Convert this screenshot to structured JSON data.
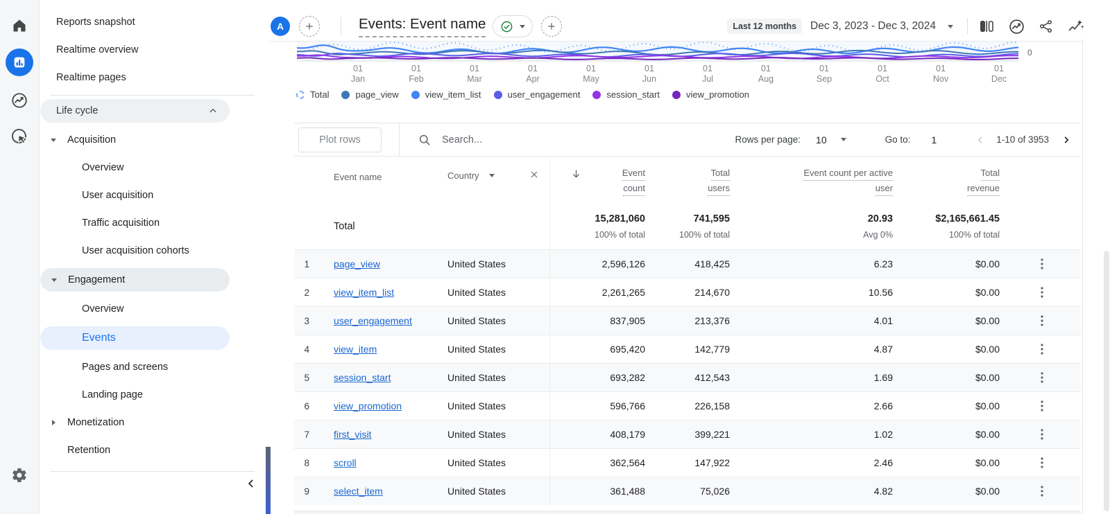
{
  "accent": {
    "primary_blue": "#1a73e8",
    "link_blue": "#1967d2",
    "active_item_bg": "#e8f0fe"
  },
  "icons": {
    "rail": [
      "home-icon",
      "reports-icon",
      "explore-icon",
      "advertising-icon",
      "settings-gear-icon"
    ],
    "header_actions": [
      "edit-comparisons-icon",
      "view-insights-icon",
      "share-report-icon",
      "generated-insights-icon"
    ],
    "misc": [
      "plus-icon",
      "check-circle-icon",
      "search-icon",
      "close-icon",
      "sort-descending-icon",
      "row-menu-kebab-icon"
    ]
  },
  "sidebar": {
    "top_items": [
      "Reports snapshot",
      "Realtime overview",
      "Realtime pages"
    ],
    "section_label": "Life cycle",
    "acquisition": {
      "label": "Acquisition",
      "children": [
        "Overview",
        "User acquisition",
        "Traffic acquisition",
        "User acquisition cohorts"
      ]
    },
    "engagement": {
      "label": "Engagement",
      "children": [
        "Overview",
        "Events",
        "Pages and screens",
        "Landing page"
      ],
      "active_child": "Events"
    },
    "monetization_label": "Monetization",
    "retention_label": "Retention"
  },
  "header": {
    "avatar_initial": "A",
    "title": "Events: Event name",
    "date_preset_badge": "Last 12 months",
    "date_range": "Dec 3, 2023 - Dec 3, 2024"
  },
  "chart_data": {
    "type": "line",
    "title": "",
    "x_ticks": [
      {
        "day": "01",
        "month": "Jan"
      },
      {
        "day": "01",
        "month": "Feb"
      },
      {
        "day": "01",
        "month": "Mar"
      },
      {
        "day": "01",
        "month": "Apr"
      },
      {
        "day": "01",
        "month": "May"
      },
      {
        "day": "01",
        "month": "Jun"
      },
      {
        "day": "01",
        "month": "Jul"
      },
      {
        "day": "01",
        "month": "Aug"
      },
      {
        "day": "01",
        "month": "Sep"
      },
      {
        "day": "01",
        "month": "Oct"
      },
      {
        "day": "01",
        "month": "Nov"
      },
      {
        "day": "01",
        "month": "Dec"
      }
    ],
    "y_tick_label": "0",
    "series": [
      {
        "name": "Total",
        "color": "#4285f4",
        "style": "dotted"
      },
      {
        "name": "page_view",
        "color": "#3f77b5",
        "style": "solid"
      },
      {
        "name": "view_item_list",
        "color": "#4285f4",
        "style": "solid"
      },
      {
        "name": "user_engagement",
        "color": "#5a5de8",
        "style": "solid"
      },
      {
        "name": "session_start",
        "color": "#9334e6",
        "style": "solid"
      },
      {
        "name": "view_promotion",
        "color": "#7627bb",
        "style": "solid"
      }
    ],
    "legend_position": "bottom",
    "visible_note": "Only the bottom band of the time-series near the 0 gridline is visible; the rest of the plot is scrolled out of view above."
  },
  "toolbar": {
    "plot_rows_label": "Plot rows",
    "search_placeholder": "Search...",
    "rows_per_page_label": "Rows per page:",
    "rows_per_page_value": "10",
    "go_to_label": "Go to:",
    "go_to_value": "1",
    "pagination_range": "1-10 of 3953"
  },
  "table": {
    "columns": {
      "event_name": "Event name",
      "secondary_dimension": "Country",
      "event_count_l1": "Event",
      "event_count_l2": "count",
      "total_users_l1": "Total",
      "total_users_l2": "users",
      "ecpau_l1": "Event count per active",
      "ecpau_l2": "user",
      "revenue_l1": "Total",
      "revenue_l2": "revenue"
    },
    "totals": {
      "label": "Total",
      "event_count": "15,281,060",
      "event_count_sub": "100% of total",
      "total_users": "741,595",
      "total_users_sub": "100% of total",
      "ecpau": "20.93",
      "ecpau_sub": "Avg 0%",
      "revenue": "$2,165,661.45",
      "revenue_sub": "100% of total"
    },
    "rows": [
      {
        "num": "1",
        "event": "page_view",
        "country": "United States",
        "event_count": "2,596,126",
        "total_users": "418,425",
        "ecpau": "6.23",
        "revenue": "$0.00"
      },
      {
        "num": "2",
        "event": "view_item_list",
        "country": "United States",
        "event_count": "2,261,265",
        "total_users": "214,670",
        "ecpau": "10.56",
        "revenue": "$0.00"
      },
      {
        "num": "3",
        "event": "user_engagement",
        "country": "United States",
        "event_count": "837,905",
        "total_users": "213,376",
        "ecpau": "4.01",
        "revenue": "$0.00"
      },
      {
        "num": "4",
        "event": "view_item",
        "country": "United States",
        "event_count": "695,420",
        "total_users": "142,779",
        "ecpau": "4.87",
        "revenue": "$0.00"
      },
      {
        "num": "5",
        "event": "session_start",
        "country": "United States",
        "event_count": "693,282",
        "total_users": "412,543",
        "ecpau": "1.69",
        "revenue": "$0.00"
      },
      {
        "num": "6",
        "event": "view_promotion",
        "country": "United States",
        "event_count": "596,766",
        "total_users": "226,158",
        "ecpau": "2.66",
        "revenue": "$0.00"
      },
      {
        "num": "7",
        "event": "first_visit",
        "country": "United States",
        "event_count": "408,179",
        "total_users": "399,221",
        "ecpau": "1.02",
        "revenue": "$0.00"
      },
      {
        "num": "8",
        "event": "scroll",
        "country": "United States",
        "event_count": "362,564",
        "total_users": "147,922",
        "ecpau": "2.46",
        "revenue": "$0.00"
      },
      {
        "num": "9",
        "event": "select_item",
        "country": "United States",
        "event_count": "361,488",
        "total_users": "75,026",
        "ecpau": "4.82",
        "revenue": "$0.00"
      }
    ]
  }
}
